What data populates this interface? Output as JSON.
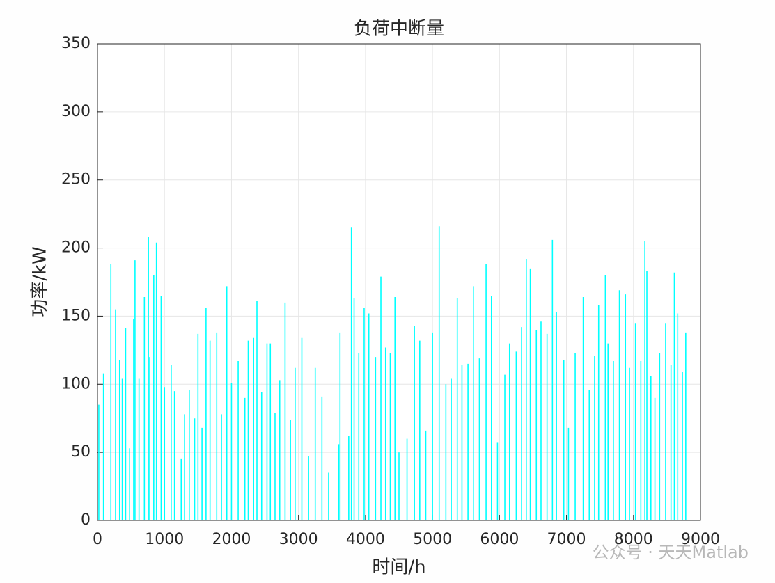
{
  "chart_data": {
    "type": "bar",
    "title": "负荷中断量",
    "x_label": "时间/h",
    "y_label": "功率/kW",
    "x": [
      20,
      90,
      200,
      270,
      330,
      370,
      420,
      480,
      540,
      560,
      620,
      700,
      760,
      780,
      840,
      880,
      950,
      1000,
      1100,
      1150,
      1250,
      1300,
      1370,
      1450,
      1500,
      1560,
      1620,
      1680,
      1780,
      1850,
      1930,
      2000,
      2100,
      2200,
      2250,
      2330,
      2380,
      2450,
      2530,
      2580,
      2650,
      2720,
      2800,
      2880,
      2950,
      3050,
      3150,
      3250,
      3350,
      3450,
      3600,
      3620,
      3750,
      3790,
      3830,
      3900,
      3980,
      4050,
      4150,
      4230,
      4300,
      4370,
      4440,
      4500,
      4620,
      4730,
      4810,
      4900,
      5000,
      5100,
      5200,
      5280,
      5370,
      5440,
      5530,
      5610,
      5700,
      5800,
      5880,
      5970,
      6080,
      6150,
      6250,
      6330,
      6400,
      6460,
      6550,
      6620,
      6710,
      6790,
      6850,
      6960,
      7030,
      7130,
      7250,
      7340,
      7420,
      7480,
      7580,
      7620,
      7700,
      7790,
      7880,
      7940,
      8030,
      8110,
      8170,
      8200,
      8260,
      8320,
      8390,
      8480,
      8560,
      8610,
      8660,
      8730,
      8780
    ],
    "values": [
      85,
      108,
      188,
      155,
      118,
      104,
      141,
      53,
      148,
      191,
      104,
      164,
      208,
      120,
      180,
      204,
      165,
      98,
      114,
      95,
      45,
      78,
      96,
      75,
      137,
      68,
      156,
      132,
      138,
      78,
      172,
      101,
      117,
      90,
      132,
      134,
      161,
      94,
      130,
      130,
      79,
      103,
      160,
      74,
      112,
      134,
      47,
      112,
      91,
      35,
      56,
      138,
      62,
      215,
      163,
      123,
      156,
      152,
      120,
      179,
      127,
      123,
      164,
      50,
      60,
      143,
      132,
      66,
      138,
      216,
      100,
      104,
      163,
      114,
      115,
      172,
      119,
      188,
      165,
      57,
      107,
      130,
      124,
      142,
      192,
      185,
      140,
      146,
      137,
      206,
      153,
      118,
      68,
      123,
      164,
      96,
      121,
      158,
      180,
      130,
      117,
      169,
      166,
      112,
      145,
      117,
      205,
      183,
      106,
      90,
      123,
      145,
      114,
      182,
      152,
      109,
      138
    ],
    "color": "#00ffff",
    "xlim": [
      0,
      9000
    ],
    "xticks": [
      0,
      1000,
      2000,
      3000,
      4000,
      5000,
      6000,
      7000,
      8000,
      9000
    ],
    "ylim": [
      0,
      350
    ],
    "yticks": [
      0,
      50,
      100,
      150,
      200,
      250,
      300,
      350
    ],
    "grid": true,
    "watermark": "公众号 · 天天Matlab"
  }
}
